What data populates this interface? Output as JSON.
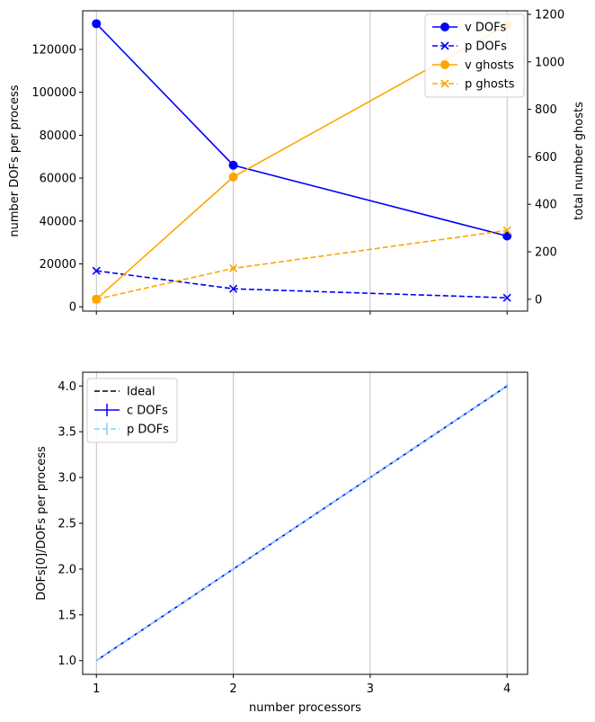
{
  "chart_data": [
    {
      "type": "line",
      "x": [
        1,
        2,
        3,
        4
      ],
      "xlim": [
        0.9,
        4.15
      ],
      "xticks": [
        1,
        2,
        3,
        4
      ],
      "grid_x": true,
      "ylabel": "number DOFs per process",
      "ylim": [
        -2000,
        138000
      ],
      "yticks": [
        "0",
        "20000",
        "40000",
        "60000",
        "80000",
        "100000",
        "120000"
      ],
      "y2label": "total number ghosts",
      "y2lim": [
        -50,
        1215
      ],
      "y2ticks": [
        "0",
        "200",
        "400",
        "600",
        "800",
        "1000",
        "1200"
      ],
      "legend_position": "top-right",
      "series": [
        {
          "name": "v DOFs",
          "axis": "left",
          "color": "#0000ff",
          "dash": false,
          "marker": "circle",
          "x": [
            1,
            2,
            4
          ],
          "values": [
            132000,
            66000,
            33000
          ]
        },
        {
          "name": "p DOFs",
          "axis": "left",
          "color": "#0000ff",
          "dash": true,
          "marker": "x",
          "x": [
            1,
            2,
            4
          ],
          "values": [
            16800,
            8400,
            4200
          ]
        },
        {
          "name": "v ghosts",
          "axis": "right",
          "color": "#ffa500",
          "dash": false,
          "marker": "circle",
          "x": [
            1,
            2,
            4
          ],
          "values": [
            0,
            515,
            1155
          ]
        },
        {
          "name": "p ghosts",
          "axis": "right",
          "color": "#ffa500",
          "dash": true,
          "marker": "x",
          "x": [
            1,
            2,
            4
          ],
          "values": [
            0,
            130,
            290
          ]
        }
      ]
    },
    {
      "type": "line",
      "x": [
        1,
        2,
        3,
        4
      ],
      "xlim": [
        0.9,
        4.15
      ],
      "xticks": [
        1,
        2,
        3,
        4
      ],
      "grid_x": true,
      "xlabel": "number processors",
      "ylabel": "DOFs[0]/DOFs per process",
      "ylim": [
        0.85,
        4.15
      ],
      "yticks": [
        "1.0",
        "1.5",
        "2.0",
        "2.5",
        "3.0",
        "3.5",
        "4.0"
      ],
      "legend_position": "top-left",
      "series": [
        {
          "name": "Ideal",
          "color": "#000000",
          "dash": true,
          "marker": "none",
          "x": [
            1,
            2,
            3,
            4
          ],
          "values": [
            1,
            2,
            3,
            4
          ]
        },
        {
          "name": "c DOFs",
          "color": "#0000ff",
          "dash": false,
          "marker": "errorbar",
          "x": [
            1,
            2,
            3,
            4
          ],
          "values": [
            1,
            2,
            3,
            4
          ],
          "err": [
            0,
            0,
            0.01,
            0.02
          ]
        },
        {
          "name": "p DOFs",
          "color": "#87cefa",
          "dash": true,
          "marker": "errorbar",
          "x": [
            1,
            2,
            3,
            4
          ],
          "values": [
            1,
            2,
            3,
            4
          ],
          "err": [
            0,
            0.01,
            0.01,
            0.03
          ]
        }
      ]
    }
  ]
}
